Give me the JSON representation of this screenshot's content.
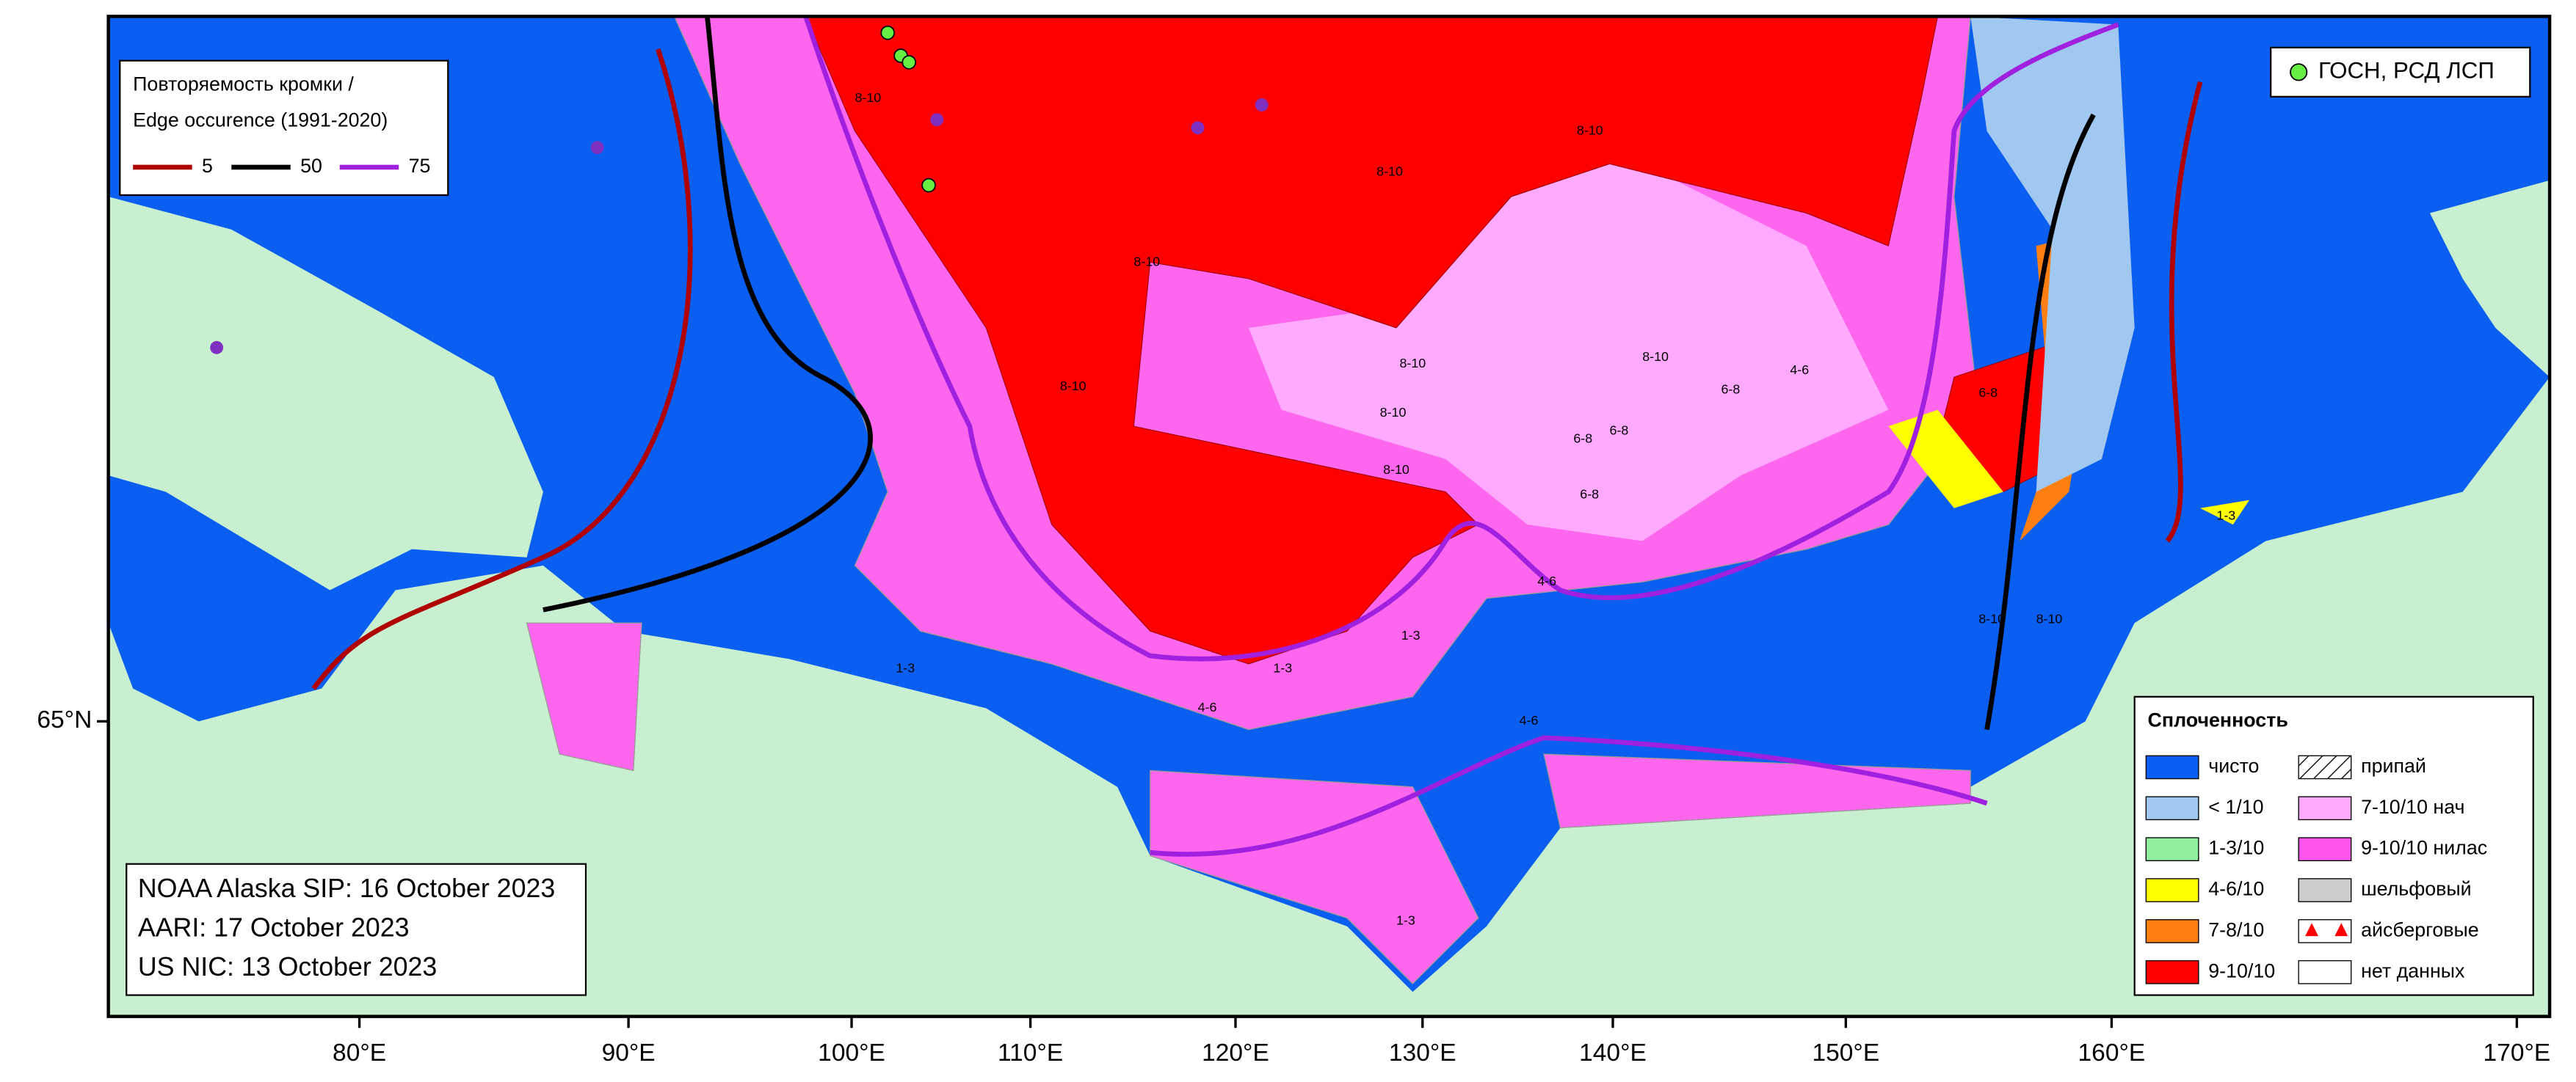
{
  "edge_legend": {
    "title": [
      "Повторяемость кромки /",
      "Edge occurence (1991-2020)"
    ],
    "items": [
      {
        "label": "5",
        "color": "#b00000"
      },
      {
        "label": "50",
        "color": "#000000"
      },
      {
        "label": "75",
        "color": "#a020e0"
      }
    ]
  },
  "stations_legend": {
    "label": "ГОСН, РСД ЛСП",
    "color": "#66ee44"
  },
  "concentration_legend": {
    "title": "Сплоченность",
    "left": [
      {
        "label": "чисто",
        "color": "#0a5ef0"
      },
      {
        "label": "< 1/10",
        "color": "#a0c8f0"
      },
      {
        "label": "1-3/10",
        "color": "#90f0a0"
      },
      {
        "label": "4-6/10",
        "color": "#ffff00"
      },
      {
        "label": "7-8/10",
        "color": "#ff8010"
      },
      {
        "label": "9-10/10",
        "color": "#ff0000"
      }
    ],
    "right": [
      {
        "label": "припай",
        "color": "hatch"
      },
      {
        "label": "7-10/10 нач",
        "color": "#ffaaff"
      },
      {
        "label": "9-10/10 нилас",
        "color": "#ff55ee"
      },
      {
        "label": "шельфовый",
        "color": "#cccccc"
      },
      {
        "label": "айсберговые",
        "color": "icebergs"
      },
      {
        "label": "нет данных",
        "color": "#ffffff"
      }
    ]
  },
  "sources": [
    "NOAA Alaska SIP: 16 October 2023",
    "AARI: 17 October 2023",
    "US NIC: 13 October 2023"
  ],
  "longitude_labels": [
    "80°E",
    "90°E",
    "100°E",
    "110°E",
    "120°E",
    "130°E",
    "140°E",
    "150°E",
    "160°E",
    "170°E"
  ],
  "latitude_label": "65°N",
  "map_labels": [
    "8-10",
    "8-10",
    "8-10",
    "8-10",
    "8-10",
    "8-10",
    "8-10",
    "8-10",
    "8-10",
    "6-8",
    "6-8",
    "6-8",
    "6-8",
    "4-6",
    "4-6",
    "4-6",
    "1-3",
    "1-3",
    "1-3",
    "1-3",
    "8-10",
    "8-10",
    "6-8",
    "4-6",
    "1-3"
  ]
}
